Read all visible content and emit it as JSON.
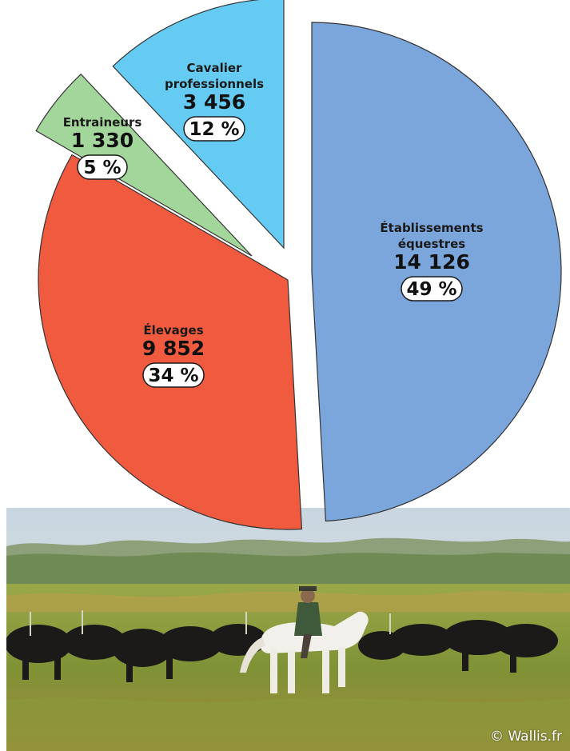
{
  "chart_data": {
    "type": "pie",
    "title": "",
    "slices": [
      {
        "name_lines": [
          "Établissements",
          "équestres"
        ],
        "value": 14126,
        "value_label": "14 126",
        "percent_label": "49 %",
        "color": "#7ba6dc"
      },
      {
        "name_lines": [
          "Élevages"
        ],
        "value": 9852,
        "value_label": "9 852",
        "percent_label": "34 %",
        "color": "#f05a3e"
      },
      {
        "name_lines": [
          "Entraineurs"
        ],
        "value": 1330,
        "value_label": "1 330",
        "percent_label": "5 %",
        "color": "#a3d69a"
      },
      {
        "name_lines": [
          "Cavalier",
          "professionnels"
        ],
        "value": 3456,
        "value_label": "3 456",
        "percent_label": "12 %",
        "color": "#66cbf2"
      }
    ]
  },
  "photo": {
    "credit": "© Wallis.fr"
  }
}
